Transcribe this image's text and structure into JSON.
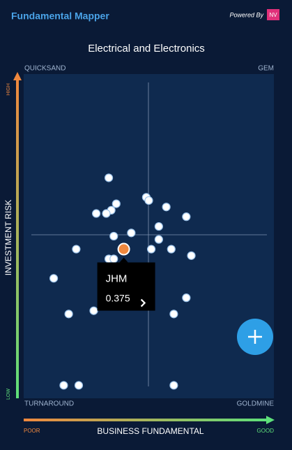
{
  "header": {
    "title": "Fundamental Mapper",
    "powered_by": "Powered By",
    "logo": "NV"
  },
  "chart_data": {
    "type": "scatter",
    "title": "Electrical and Electronics",
    "quadrants": {
      "top_left": "QUICKSAND",
      "top_right": "GEM",
      "bottom_left": "TURNAROUND",
      "bottom_right": "GOLDMINE"
    },
    "x_label": "BUSINESS FUNDAMENTAL",
    "x_low": "POOR",
    "x_high": "GOOD",
    "y_label": "INVESTMENT RISK",
    "y_low": "LOW",
    "y_high": "HIGH",
    "xlim": [
      0,
      1
    ],
    "ylim": [
      0,
      1
    ],
    "series": [
      {
        "color": "#ffffff",
        "x": [
          0.34,
          0.49,
          0.5,
          0.37,
          0.57,
          0.35,
          0.29,
          0.65,
          0.33,
          0.54,
          0.36,
          0.43,
          0.54,
          0.21,
          0.51,
          0.59,
          0.34,
          0.36,
          0.67,
          0.12,
          0.65,
          0.28,
          0.18,
          0.6,
          0.16,
          0.22,
          0.6
        ],
        "y": [
          0.68,
          0.62,
          0.61,
          0.6,
          0.59,
          0.58,
          0.57,
          0.56,
          0.57,
          0.53,
          0.5,
          0.51,
          0.49,
          0.46,
          0.46,
          0.46,
          0.43,
          0.43,
          0.44,
          0.37,
          0.31,
          0.27,
          0.26,
          0.26,
          0.04,
          0.04,
          0.04
        ]
      },
      {
        "name": "JHM",
        "color": "#f0883e",
        "x": [
          0.4
        ],
        "y": [
          0.46
        ]
      }
    ],
    "tooltip": {
      "value": 0.375
    }
  }
}
